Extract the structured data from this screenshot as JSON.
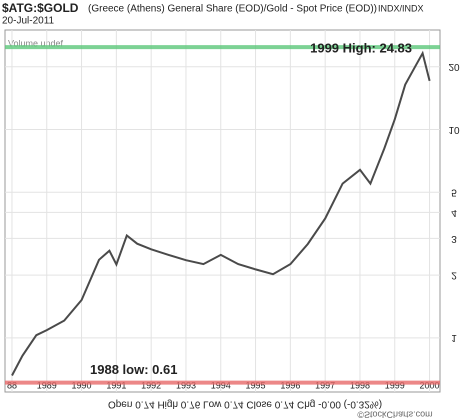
{
  "chart_data": {
    "type": "line",
    "title": "$ATG:$GOLD",
    "subtitle": "(Greece (Athens) General Share (EOD)/Gold - Spot Price (EOD))",
    "exchange": "INDX/INDX",
    "date": "20-Jul-2011",
    "volume_note": "Volume undef",
    "footer": "Open 0.74 High 0.76 Low 0.74 Close 0.74 Chg -0.00 (-0.32%)",
    "credit": "©StockCharts.com",
    "annotations": [
      {
        "label": "1999 High: 24.83",
        "value": 24.83,
        "color": "#5cc87a"
      },
      {
        "label": "1988 low: 0.61",
        "value": 0.61,
        "color": "#e86a6a"
      }
    ],
    "x": [
      1988.0,
      1988.3,
      1988.7,
      1989.0,
      1989.5,
      1990.0,
      1990.5,
      1990.8,
      1991.0,
      1991.3,
      1991.6,
      1992.0,
      1992.5,
      1993.0,
      1993.5,
      1994.0,
      1994.5,
      1995.0,
      1995.5,
      1996.0,
      1996.5,
      1997.0,
      1997.5,
      1998.0,
      1998.3,
      1998.7,
      1999.0,
      1999.3,
      1999.6,
      1999.8,
      2000.0
    ],
    "series": [
      {
        "name": "$ATG:$GOLD",
        "color": "#4a4a4a",
        "values": [
          0.66,
          0.82,
          1.03,
          1.09,
          1.21,
          1.52,
          2.37,
          2.62,
          2.25,
          3.1,
          2.83,
          2.66,
          2.5,
          2.36,
          2.26,
          2.5,
          2.26,
          2.13,
          2.02,
          2.26,
          2.82,
          3.74,
          5.5,
          6.4,
          5.5,
          8.1,
          11.2,
          16.4,
          20.2,
          23.2,
          17.1
        ]
      }
    ],
    "xlim": [
      1987.8,
      2000.3
    ],
    "xticks": [
      {
        "value": 1988,
        "label": "88"
      },
      1989,
      1990,
      1991,
      1992,
      1993,
      1994,
      1995,
      1996,
      1997,
      1998,
      1999,
      2000
    ],
    "ylim": [
      0.55,
      30
    ],
    "yticks": [
      1,
      2,
      3,
      4,
      5,
      10,
      20
    ],
    "log_scale": true,
    "grid": true
  }
}
